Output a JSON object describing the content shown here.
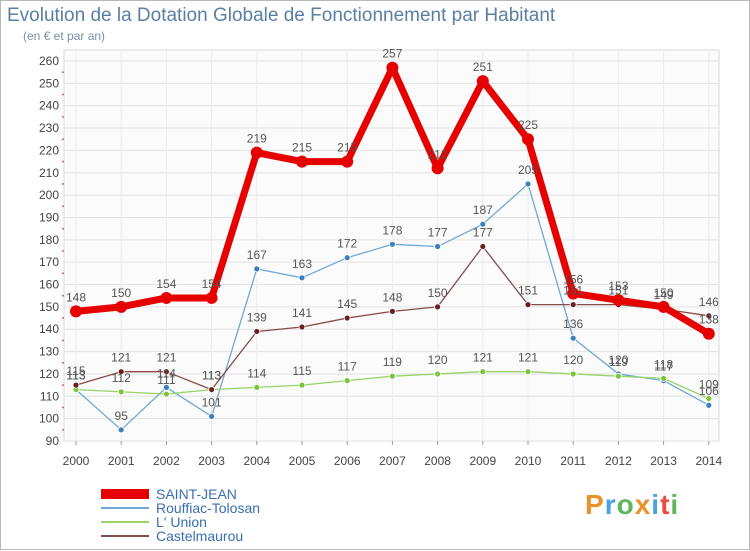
{
  "header": {
    "title": "Evolution de la Dotation Globale de Fonctionnement par Habitant",
    "subtitle": "(en € et par an)"
  },
  "logo": {
    "text": "Proxiti",
    "colors": [
      "#e8922c",
      "#4aa3df",
      "#5cb85c",
      "#e8922c",
      "#4aa3df",
      "#e84c3c",
      "#5cb85c"
    ]
  },
  "chart_data": {
    "type": "line",
    "title": "Evolution de la Dotation Globale de Fonctionnement par Habitant",
    "subtitle": "(en € et par an)",
    "x": [
      "2000",
      "2001",
      "2002",
      "2003",
      "2004",
      "2005",
      "2006",
      "2007",
      "2008",
      "2009",
      "2010",
      "2011",
      "2012",
      "2013",
      "2014"
    ],
    "yticks": [
      90,
      100,
      110,
      120,
      130,
      140,
      150,
      160,
      170,
      180,
      190,
      200,
      210,
      220,
      230,
      240,
      250,
      260
    ],
    "ylim": [
      90,
      260
    ],
    "grid": true,
    "legend_position": "bottom-left",
    "series": [
      {
        "name": "SAINT-JEAN",
        "color": "#e60000",
        "width": 7,
        "values": [
          148,
          150,
          154,
          154,
          219,
          215,
          215,
          257,
          212,
          251,
          225,
          156,
          153,
          150,
          138
        ],
        "labels": [
          "148",
          "150",
          "154",
          "154",
          "219",
          "215",
          "215",
          "257",
          "212",
          "251",
          "225",
          "156",
          "153",
          "150",
          "138"
        ]
      },
      {
        "name": "Rouffiac-Tolosan",
        "color": "#6fa8d6",
        "width": 1.3,
        "marker": "#3a7fc0",
        "values": [
          113,
          95,
          114,
          101,
          167,
          163,
          172,
          178,
          177,
          187,
          205,
          136,
          120,
          117,
          106
        ],
        "labels": [
          "113",
          "95",
          "114",
          "101",
          "167",
          "163",
          "172",
          "178",
          "177",
          "187",
          "205",
          "136",
          "120",
          "117",
          "106"
        ]
      },
      {
        "name": "L' Union",
        "color": "#99d36a",
        "width": 1.3,
        "marker": "#7cc43a",
        "values": [
          113,
          112,
          111,
          113,
          114,
          115,
          117,
          119,
          120,
          121,
          121,
          120,
          119,
          118,
          109
        ],
        "labels": [
          "113",
          "112",
          "111",
          "113",
          "114",
          "115",
          "117",
          "119",
          "120",
          "121",
          "121",
          "120",
          "119",
          "118",
          "109"
        ]
      },
      {
        "name": "Castelmaurou",
        "color": "#8b4a4a",
        "width": 1.3,
        "marker": "#6b2020",
        "values": [
          115,
          121,
          121,
          113,
          139,
          141,
          145,
          148,
          150,
          177,
          151,
          151,
          151,
          149,
          146
        ],
        "labels": [
          "115",
          "121",
          "121",
          "113",
          "139",
          "141",
          "145",
          "148",
          "150",
          "177",
          "151",
          "151",
          "151",
          "149",
          "146"
        ]
      }
    ]
  }
}
